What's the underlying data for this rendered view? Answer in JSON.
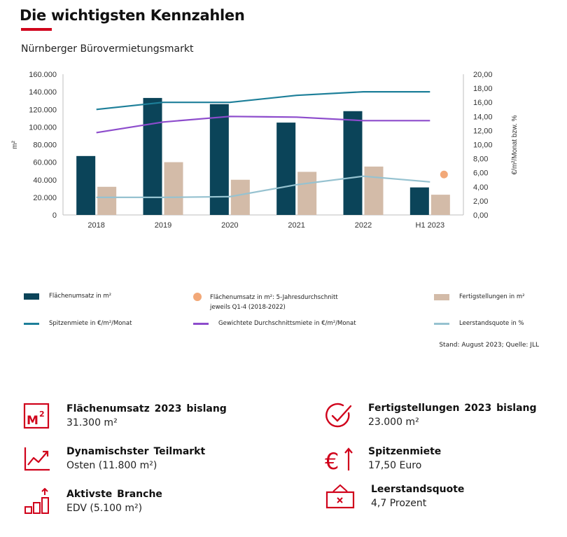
{
  "header": {
    "title": "Die wichtigsten Kennzahlen",
    "subtitle": "Nürnberger Bürovermietungsmarkt"
  },
  "colors": {
    "accent_red": "#d0021b",
    "bar_flaechenumsatz": "#0b4459",
    "bar_fertigstellungen": "#d3bba8",
    "line_spitzenmiete": "#1d7f99",
    "line_durchschnittsmiete": "#8d4ccc",
    "line_leerstand": "#96c2d0",
    "dot_average": "#f2a878"
  },
  "chart_data": {
    "type": "bar",
    "categories": [
      "2018",
      "2019",
      "2020",
      "2021",
      "2022",
      "H1 2023"
    ],
    "ylabel": "m²",
    "y2label": "€/m²/Monat bzw. %",
    "ylim": [
      0,
      160000
    ],
    "y2lim": [
      0,
      20
    ],
    "y_ticks": [
      "0",
      "20.000",
      "40.000",
      "60.000",
      "80.000",
      "100.000",
      "120.000",
      "140.000",
      "160.000"
    ],
    "y2_ticks": [
      "0,00",
      "2,00",
      "4,00",
      "6,00",
      "8,00",
      "10,00",
      "12,00",
      "14,00",
      "16,00",
      "18,00",
      "20,00"
    ],
    "grid": false,
    "legend_position": "bottom",
    "series": [
      {
        "name": "Flächenumsatz   in m²",
        "type": "bar",
        "axis": "left",
        "color": "#0b4459",
        "values": [
          67000,
          133000,
          126000,
          105000,
          118000,
          31300
        ]
      },
      {
        "name": "Fertigstellungen   in m²",
        "type": "bar",
        "axis": "left",
        "color": "#d3bba8",
        "values": [
          32000,
          60000,
          40000,
          49000,
          55000,
          23000
        ]
      },
      {
        "name": "Spitzenmiete   in €/m²/Monat",
        "type": "line",
        "axis": "right",
        "color": "#1d7f99",
        "values": [
          15.0,
          16.0,
          16.0,
          17.0,
          17.5,
          17.5
        ]
      },
      {
        "name": "Gewichtete  Durchschnittsmiete   in €/m²/Monat",
        "type": "line",
        "axis": "right",
        "color": "#8d4ccc",
        "values": [
          11.7,
          13.2,
          14.0,
          13.9,
          13.4,
          13.4
        ]
      },
      {
        "name": "Leerstandsquote    in %",
        "type": "line",
        "axis": "right",
        "color": "#96c2d0",
        "values": [
          2.5,
          2.5,
          2.6,
          4.3,
          5.5,
          4.7
        ]
      },
      {
        "name": "Flächenumsatz   in m²: 5-Jahresdurchschnitt jeweils Q1-4  (2018-2022)",
        "type": "point",
        "axis": "left",
        "color": "#f2a878",
        "category": "H1 2023",
        "value": 46000
      }
    ]
  },
  "legend": [
    {
      "name": "Flächenumsatz   in m²",
      "line2": "",
      "color": "#0b4459",
      "kind": "rect"
    },
    {
      "name": "Flächenumsatz   in m²: 5-Jahresdurchschnitt",
      "line2": "jeweils Q1-4  (2018-2022)",
      "color": "#f2a878",
      "kind": "dot"
    },
    {
      "name": "Fertigstellungen   in m²",
      "line2": "",
      "color": "#d3bba8",
      "kind": "rect"
    },
    {
      "name": "Spitzenmiete   in €/m²/Monat",
      "line2": "",
      "color": "#1d7f99",
      "kind": "line"
    },
    {
      "name": "Gewichtete  Durchschnittsmiete   in €/m²/Monat",
      "line2": "",
      "color": "#8d4ccc",
      "kind": "line"
    },
    {
      "name": "Leerstandsquote    in %",
      "line2": "",
      "color": "#96c2d0",
      "kind": "line"
    }
  ],
  "source": "Stand: August 2023; Quelle: JLL",
  "kpis": [
    {
      "icon": "m2-icon",
      "label": "Flächenumsatz  2023  bislang",
      "value": "31.300 m²"
    },
    {
      "icon": "checkmark-circle-icon",
      "label": "Fertigstellungen  2023  bislang",
      "value": "23.000 m²"
    },
    {
      "icon": "trend-chart-icon",
      "label": "Dynamischster  Teilmarkt",
      "value": "Osten (11.800 m²)"
    },
    {
      "icon": "euro-up-icon",
      "label": "Spitzenmiete",
      "value": "17,50 Euro"
    },
    {
      "icon": "bar-growth-icon",
      "label": "Aktivste  Branche",
      "value": "EDV (5.100 m²)"
    },
    {
      "icon": "vacancy-sign-icon",
      "label": "Leerstandsquote",
      "value": "4,7 Prozent"
    }
  ]
}
